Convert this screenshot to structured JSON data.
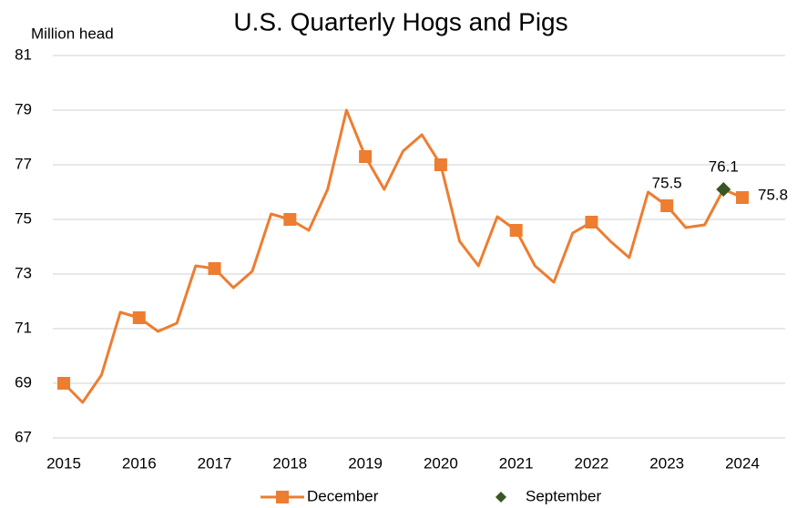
{
  "chart_data": {
    "type": "line",
    "title": "U.S. Quarterly Hogs and Pigs",
    "y_label": "Million head",
    "categories": [
      "2015",
      null,
      null,
      null,
      "2016",
      null,
      null,
      null,
      "2017",
      null,
      null,
      null,
      "2018",
      null,
      null,
      null,
      "2019",
      null,
      null,
      null,
      "2020",
      null,
      null,
      null,
      "2021",
      null,
      null,
      null,
      "2022",
      null,
      null,
      null,
      "2023",
      null,
      null,
      null,
      "2024"
    ],
    "series": [
      {
        "name": "December",
        "color": "#ed7d31",
        "marker": "square",
        "values": [
          69.0,
          68.3,
          69.3,
          71.6,
          71.4,
          70.9,
          71.2,
          73.3,
          73.2,
          72.5,
          73.1,
          75.2,
          75.0,
          74.6,
          76.1,
          79.0,
          77.3,
          76.1,
          77.5,
          78.1,
          77.0,
          74.2,
          73.3,
          75.1,
          74.6,
          73.3,
          72.7,
          74.5,
          74.9,
          74.2,
          73.6,
          76.0,
          75.5,
          74.7,
          74.8,
          76.1,
          75.8
        ],
        "value_labels": [
          null,
          null,
          null,
          null,
          null,
          null,
          null,
          null,
          null,
          null,
          null,
          null,
          null,
          null,
          null,
          null,
          null,
          null,
          null,
          null,
          null,
          null,
          null,
          null,
          null,
          null,
          null,
          null,
          null,
          null,
          null,
          null,
          "75.5",
          null,
          null,
          null,
          "75.8"
        ]
      },
      {
        "name": "September",
        "color": "#375623",
        "marker": "diamond",
        "values": [
          null,
          null,
          null,
          null,
          null,
          null,
          null,
          null,
          null,
          null,
          null,
          null,
          null,
          null,
          null,
          null,
          null,
          null,
          null,
          null,
          null,
          null,
          null,
          null,
          null,
          null,
          null,
          null,
          null,
          null,
          null,
          null,
          null,
          null,
          null,
          76.1,
          null
        ],
        "value_labels": [
          null,
          null,
          null,
          null,
          null,
          null,
          null,
          null,
          null,
          null,
          null,
          null,
          null,
          null,
          null,
          null,
          null,
          null,
          null,
          null,
          null,
          null,
          null,
          null,
          null,
          null,
          null,
          null,
          null,
          null,
          null,
          null,
          null,
          null,
          null,
          "76.1",
          null
        ]
      }
    ],
    "ylim": [
      67,
      81
    ],
    "yticks": [
      67,
      69,
      71,
      73,
      75,
      77,
      79,
      81
    ],
    "grid": true,
    "legend": "bottom"
  }
}
